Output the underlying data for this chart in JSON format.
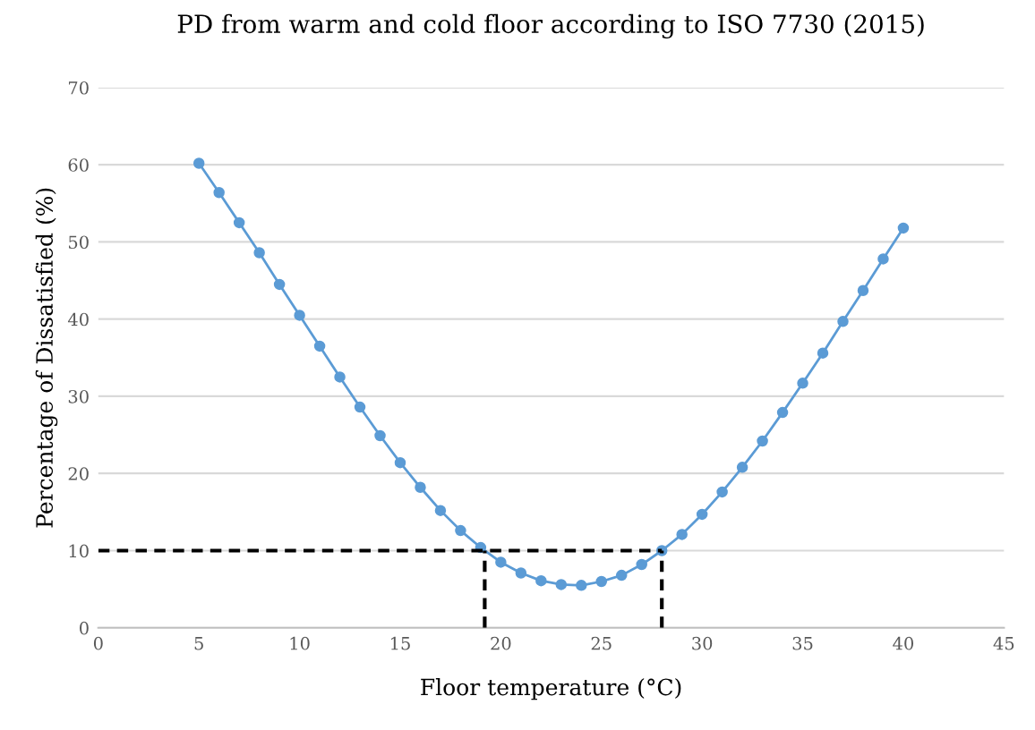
{
  "chart_data": {
    "type": "line",
    "title": "PD from warm and cold floor according to ISO 7730 (2015)",
    "xlabel": "Floor temperature (°C)",
    "ylabel": "Percentage of Dissatisfied (%)",
    "xlim": [
      0,
      45
    ],
    "xticks": [
      0,
      5,
      10,
      15,
      20,
      25,
      30,
      35,
      40,
      45
    ],
    "ylim": [
      0,
      70
    ],
    "yticks": [
      0,
      10,
      20,
      30,
      40,
      50,
      60,
      70
    ],
    "grid": "y",
    "legend": false,
    "series": [
      {
        "color": "#5b9bd5",
        "marker": "circle",
        "line_style": "solid",
        "x": [
          5,
          6,
          7,
          8,
          9,
          10,
          11,
          12,
          13,
          14,
          15,
          16,
          17,
          18,
          19,
          20,
          21,
          22,
          23,
          24,
          25,
          26,
          27,
          28,
          29,
          30,
          31,
          32,
          33,
          34,
          35,
          36,
          37,
          38,
          39,
          40
        ],
        "values": [
          60.2,
          56.4,
          52.5,
          48.6,
          44.5,
          40.5,
          36.5,
          32.5,
          28.6,
          24.9,
          21.4,
          18.2,
          15.2,
          12.6,
          10.4,
          8.5,
          7.1,
          6.1,
          5.6,
          5.5,
          6.0,
          6.8,
          8.2,
          10.0,
          12.1,
          14.7,
          17.6,
          20.8,
          24.2,
          27.9,
          31.7,
          35.6,
          39.7,
          43.7,
          47.8,
          51.8
        ]
      },
      {
        "color": "#000000",
        "marker": "none",
        "line_style": "dashed",
        "x": [
          0,
          28
        ],
        "values": [
          10,
          10
        ]
      },
      {
        "color": "#000000",
        "marker": "none",
        "line_style": "dashed",
        "x": [
          19.2,
          19.2
        ],
        "values": [
          0,
          10
        ]
      },
      {
        "color": "#000000",
        "marker": "none",
        "line_style": "dashed",
        "x": [
          28,
          28
        ],
        "values": [
          0,
          10
        ]
      }
    ]
  }
}
